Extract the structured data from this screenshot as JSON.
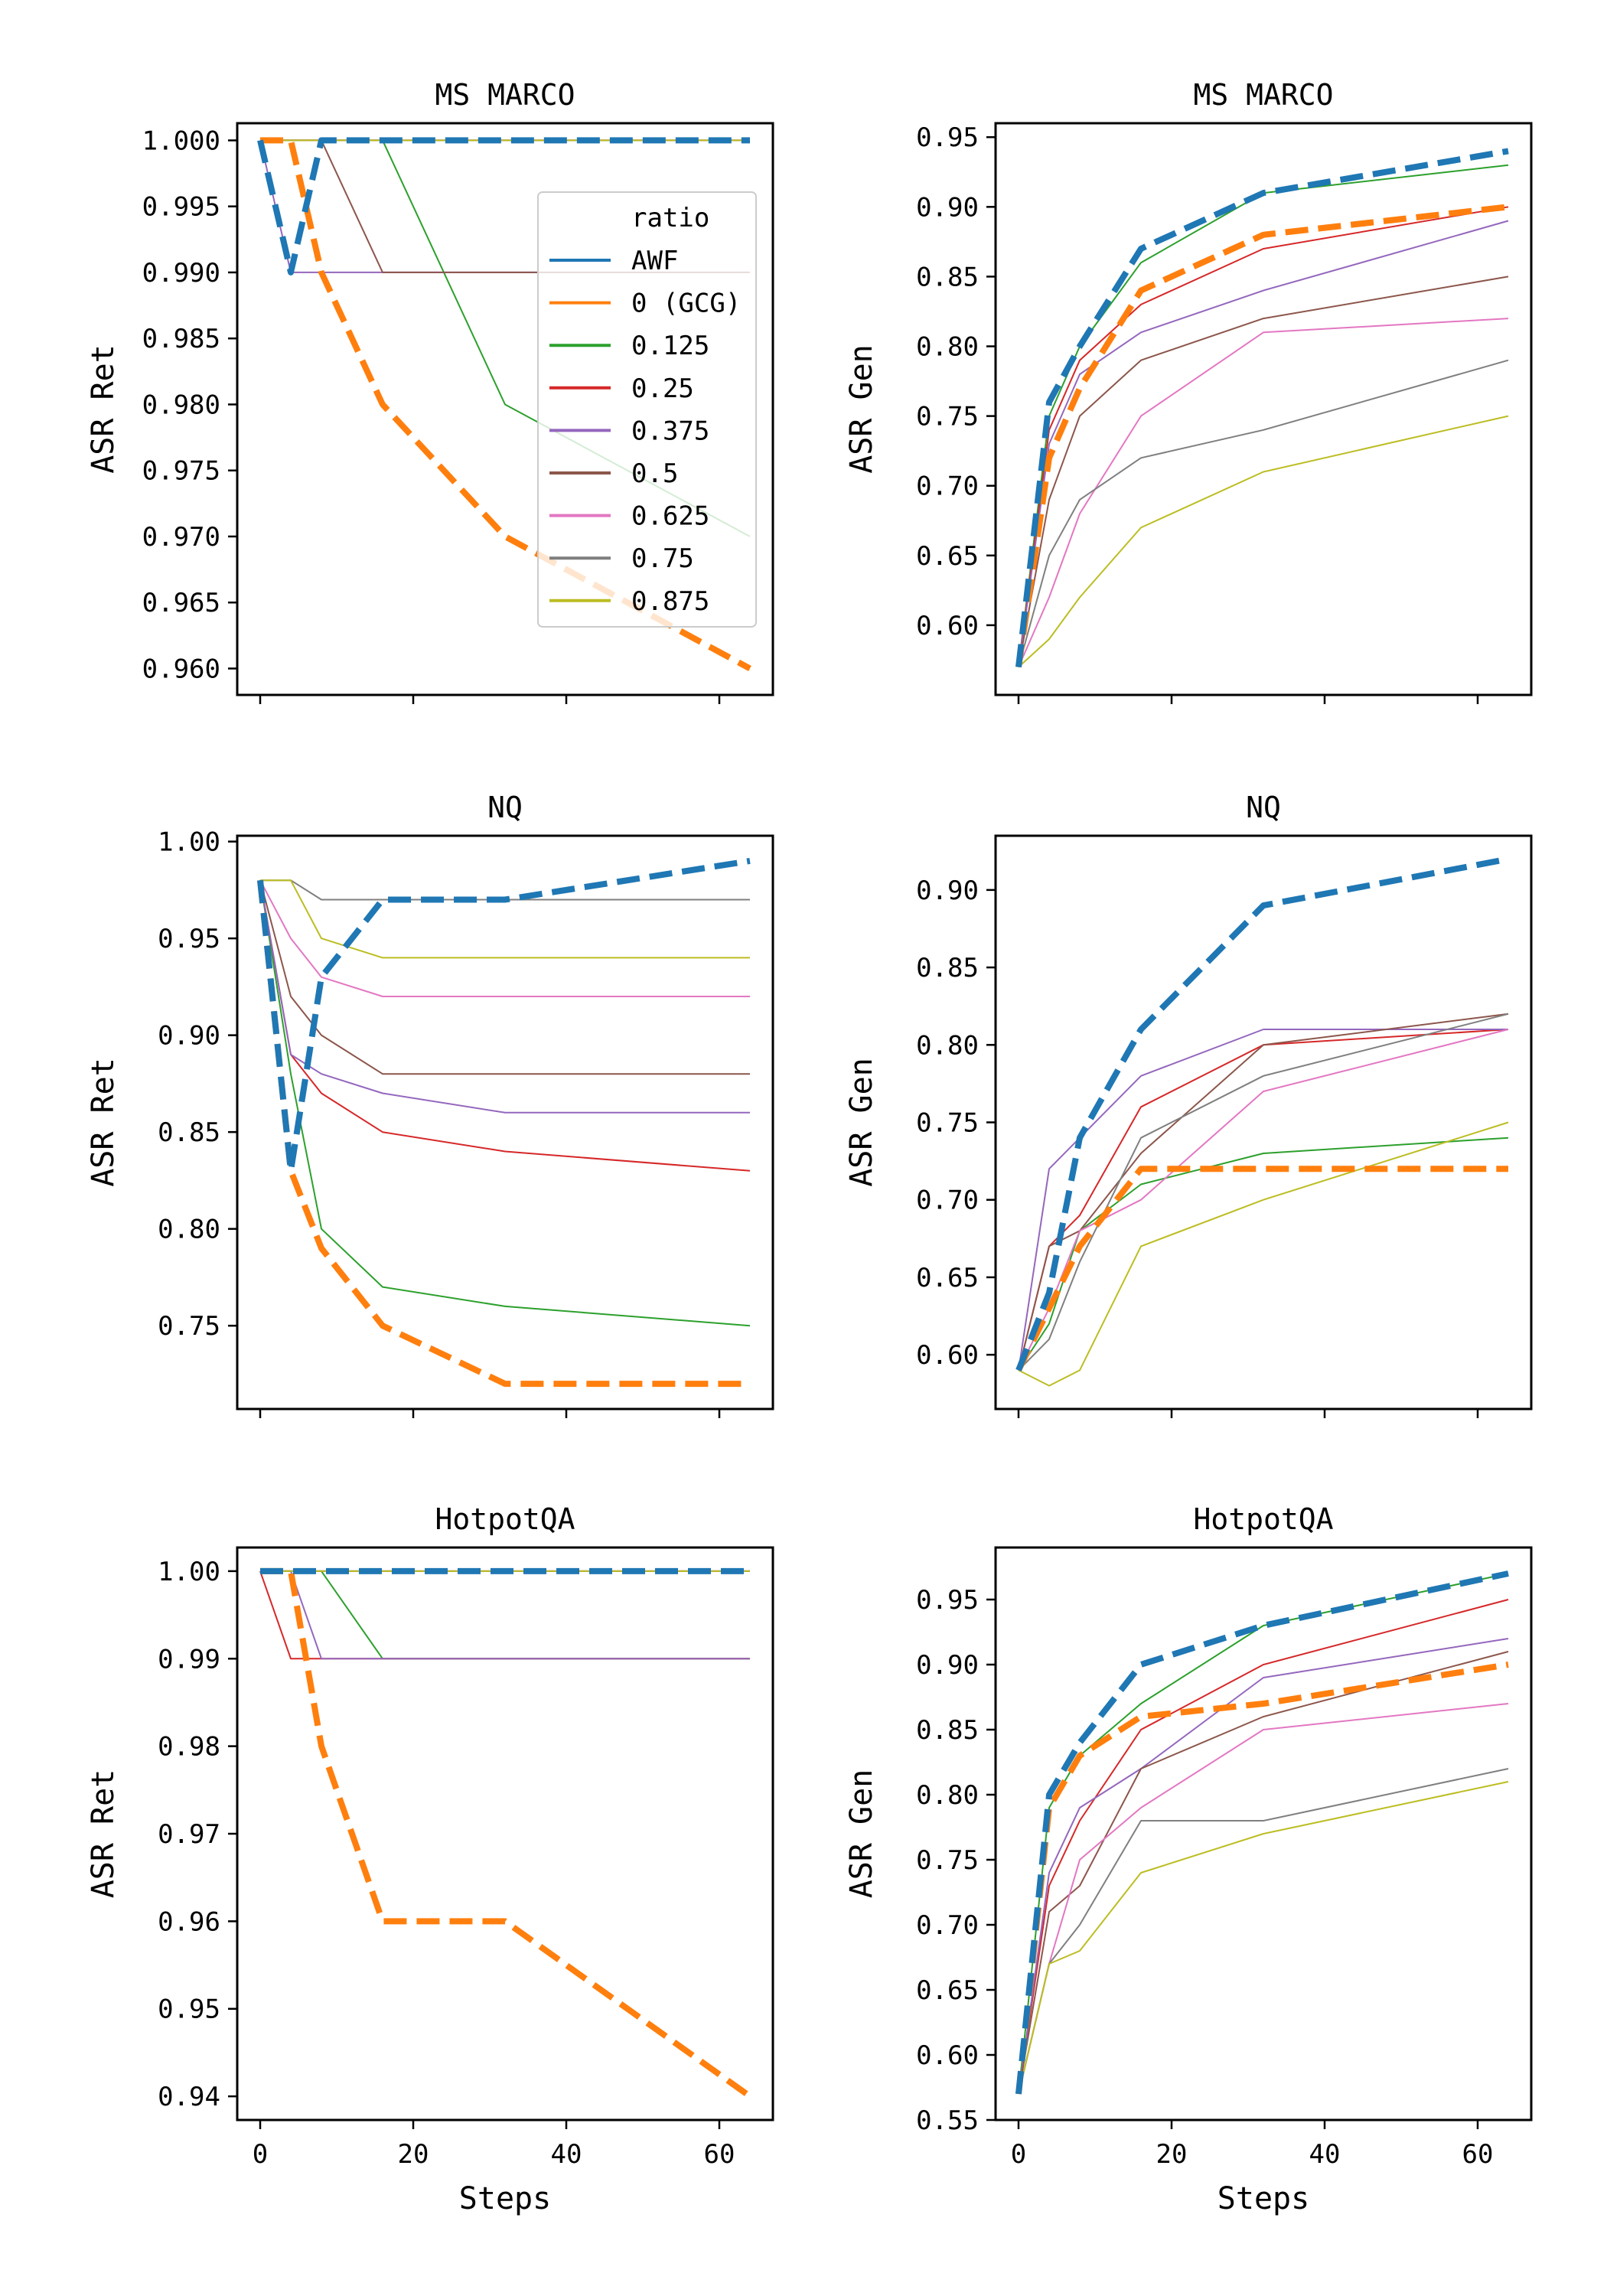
{
  "chart_data": {
    "type": "line",
    "x": [
      0,
      4,
      8,
      16,
      32,
      64
    ],
    "xlabel": "Steps",
    "xlim": [
      -3,
      67
    ],
    "xticks": [
      0,
      20,
      40,
      60
    ],
    "legend": {
      "title": "ratio",
      "placement": "top-right",
      "entries": [
        {
          "name": "AWF",
          "color": "#1f77b4"
        },
        {
          "name": "0 (GCG)",
          "color": "#ff7f0e"
        },
        {
          "name": "0.125",
          "color": "#2ca02c"
        },
        {
          "name": "0.25",
          "color": "#d62728"
        },
        {
          "name": "0.375",
          "color": "#9467bd"
        },
        {
          "name": "0.5",
          "color": "#8c564b"
        },
        {
          "name": "0.625",
          "color": "#e377c2"
        },
        {
          "name": "0.75",
          "color": "#7f7f7f"
        },
        {
          "name": "0.875",
          "color": "#bcbd22"
        }
      ]
    },
    "panels": [
      {
        "id": "msmarco-ret",
        "row": 0,
        "col": 0,
        "title": "MS MARCO",
        "ylabel": "ASR Ret",
        "ylim": [
          0.958,
          1.0013
        ],
        "yticks": [
          0.96,
          0.965,
          0.97,
          0.975,
          0.98,
          0.985,
          0.99,
          0.995,
          1.0
        ],
        "ytick_labels": [
          "0.960",
          "0.965",
          "0.970",
          "0.975",
          "0.980",
          "0.985",
          "0.990",
          "0.995",
          "1.000"
        ],
        "show_x_tick_labels": false,
        "legend": true,
        "series": [
          {
            "name": "AWF",
            "values": [
              1.0,
              0.99,
              1.0,
              1.0,
              1.0,
              1.0
            ]
          },
          {
            "name": "0 (GCG)",
            "values": [
              1.0,
              1.0,
              0.99,
              0.98,
              0.97,
              0.96
            ]
          },
          {
            "name": "0.125",
            "values": [
              1.0,
              1.0,
              1.0,
              1.0,
              0.98,
              0.97
            ]
          },
          {
            "name": "0.25",
            "values": [
              1.0,
              1.0,
              1.0,
              1.0,
              1.0,
              1.0
            ]
          },
          {
            "name": "0.375",
            "values": [
              1.0,
              0.99,
              0.99,
              0.99,
              0.99,
              0.99
            ]
          },
          {
            "name": "0.5",
            "values": [
              1.0,
              1.0,
              1.0,
              0.99,
              0.99,
              0.99
            ]
          },
          {
            "name": "0.625",
            "values": [
              1.0,
              1.0,
              1.0,
              1.0,
              1.0,
              1.0
            ]
          },
          {
            "name": "0.75",
            "values": [
              1.0,
              1.0,
              1.0,
              1.0,
              1.0,
              1.0
            ]
          },
          {
            "name": "0.875",
            "values": [
              1.0,
              1.0,
              1.0,
              1.0,
              1.0,
              1.0
            ]
          }
        ]
      },
      {
        "id": "msmarco-gen",
        "row": 0,
        "col": 1,
        "title": "MS MARCO",
        "ylabel": "ASR Gen",
        "ylim": [
          0.55,
          0.96
        ],
        "yticks": [
          0.6,
          0.65,
          0.7,
          0.75,
          0.8,
          0.85,
          0.9,
          0.95
        ],
        "ytick_labels": [
          "0.60",
          "0.65",
          "0.70",
          "0.75",
          "0.80",
          "0.85",
          "0.90",
          "0.95"
        ],
        "show_x_tick_labels": false,
        "legend": false,
        "series": [
          {
            "name": "AWF",
            "values": [
              0.57,
              0.76,
              0.8,
              0.87,
              0.91,
              0.94
            ]
          },
          {
            "name": "0 (GCG)",
            "values": [
              0.57,
              0.72,
              0.77,
              0.84,
              0.88,
              0.9
            ]
          },
          {
            "name": "0.125",
            "values": [
              0.57,
              0.75,
              0.8,
              0.86,
              0.91,
              0.93
            ]
          },
          {
            "name": "0.25",
            "values": [
              0.57,
              0.74,
              0.79,
              0.83,
              0.87,
              0.9
            ]
          },
          {
            "name": "0.375",
            "values": [
              0.57,
              0.73,
              0.78,
              0.81,
              0.84,
              0.89
            ]
          },
          {
            "name": "0.5",
            "values": [
              0.57,
              0.69,
              0.75,
              0.79,
              0.82,
              0.85
            ]
          },
          {
            "name": "0.625",
            "values": [
              0.57,
              0.62,
              0.68,
              0.75,
              0.81,
              0.82
            ]
          },
          {
            "name": "0.75",
            "values": [
              0.57,
              0.65,
              0.69,
              0.72,
              0.74,
              0.79
            ]
          },
          {
            "name": "0.875",
            "values": [
              0.57,
              0.59,
              0.62,
              0.67,
              0.71,
              0.75
            ]
          }
        ]
      },
      {
        "id": "nq-ret",
        "row": 1,
        "col": 0,
        "title": "NQ",
        "ylabel": "ASR Ret",
        "ylim": [
          0.707,
          1.003
        ],
        "yticks": [
          0.75,
          0.8,
          0.85,
          0.9,
          0.95,
          1.0
        ],
        "ytick_labels": [
          "0.75",
          "0.80",
          "0.85",
          "0.90",
          "0.95",
          "1.00"
        ],
        "show_x_tick_labels": false,
        "legend": false,
        "series": [
          {
            "name": "AWF",
            "values": [
              0.98,
              0.83,
              0.93,
              0.97,
              0.97,
              0.99
            ]
          },
          {
            "name": "0 (GCG)",
            "values": [
              0.98,
              0.83,
              0.79,
              0.75,
              0.72,
              0.72
            ]
          },
          {
            "name": "0.125",
            "values": [
              0.98,
              0.88,
              0.8,
              0.77,
              0.76,
              0.75
            ]
          },
          {
            "name": "0.25",
            "values": [
              0.98,
              0.89,
              0.87,
              0.85,
              0.84,
              0.83
            ]
          },
          {
            "name": "0.375",
            "values": [
              0.98,
              0.89,
              0.88,
              0.87,
              0.86,
              0.86
            ]
          },
          {
            "name": "0.5",
            "values": [
              0.98,
              0.92,
              0.9,
              0.88,
              0.88,
              0.88
            ]
          },
          {
            "name": "0.625",
            "values": [
              0.98,
              0.95,
              0.93,
              0.92,
              0.92,
              0.92
            ]
          },
          {
            "name": "0.75",
            "values": [
              0.98,
              0.98,
              0.97,
              0.97,
              0.97,
              0.97
            ]
          },
          {
            "name": "0.875",
            "values": [
              0.98,
              0.98,
              0.95,
              0.94,
              0.94,
              0.94
            ]
          }
        ]
      },
      {
        "id": "nq-gen",
        "row": 1,
        "col": 1,
        "title": "NQ",
        "ylabel": "ASR Gen",
        "ylim": [
          0.565,
          0.935
        ],
        "yticks": [
          0.6,
          0.65,
          0.7,
          0.75,
          0.8,
          0.85,
          0.9
        ],
        "ytick_labels": [
          "0.60",
          "0.65",
          "0.70",
          "0.75",
          "0.80",
          "0.85",
          "0.90"
        ],
        "show_x_tick_labels": false,
        "legend": false,
        "series": [
          {
            "name": "AWF",
            "values": [
              0.59,
              0.64,
              0.74,
              0.81,
              0.89,
              0.92
            ]
          },
          {
            "name": "0 (GCG)",
            "values": [
              0.59,
              0.63,
              0.67,
              0.72,
              0.72,
              0.72
            ]
          },
          {
            "name": "0.125",
            "values": [
              0.59,
              0.62,
              0.68,
              0.71,
              0.73,
              0.74
            ]
          },
          {
            "name": "0.25",
            "values": [
              0.59,
              0.67,
              0.69,
              0.76,
              0.8,
              0.81
            ]
          },
          {
            "name": "0.375",
            "values": [
              0.59,
              0.72,
              0.74,
              0.78,
              0.81,
              0.81
            ]
          },
          {
            "name": "0.5",
            "values": [
              0.59,
              0.67,
              0.68,
              0.73,
              0.8,
              0.82
            ]
          },
          {
            "name": "0.625",
            "values": [
              0.59,
              0.63,
              0.68,
              0.7,
              0.77,
              0.81
            ]
          },
          {
            "name": "0.75",
            "values": [
              0.59,
              0.61,
              0.66,
              0.74,
              0.78,
              0.82
            ]
          },
          {
            "name": "0.875",
            "values": [
              0.59,
              0.58,
              0.59,
              0.67,
              0.7,
              0.75
            ]
          }
        ]
      },
      {
        "id": "hotpotqa-ret",
        "row": 2,
        "col": 0,
        "title": "HotpotQA",
        "ylabel": "ASR Ret",
        "ylim": [
          0.9373,
          1.0027
        ],
        "yticks": [
          0.94,
          0.95,
          0.96,
          0.97,
          0.98,
          0.99,
          1.0
        ],
        "ytick_labels": [
          "0.94",
          "0.95",
          "0.96",
          "0.97",
          "0.98",
          "0.99",
          "1.00"
        ],
        "show_x_tick_labels": true,
        "legend": false,
        "series": [
          {
            "name": "AWF",
            "values": [
              1.0,
              1.0,
              1.0,
              1.0,
              1.0,
              1.0
            ]
          },
          {
            "name": "0 (GCG)",
            "values": [
              1.0,
              1.0,
              0.98,
              0.96,
              0.96,
              0.94
            ]
          },
          {
            "name": "0.125",
            "values": [
              1.0,
              1.0,
              1.0,
              0.99,
              0.99,
              0.99
            ]
          },
          {
            "name": "0.25",
            "values": [
              1.0,
              0.99,
              0.99,
              0.99,
              0.99,
              0.99
            ]
          },
          {
            "name": "0.375",
            "values": [
              1.0,
              1.0,
              0.99,
              0.99,
              0.99,
              0.99
            ]
          },
          {
            "name": "0.5",
            "values": [
              1.0,
              1.0,
              1.0,
              1.0,
              1.0,
              1.0
            ]
          },
          {
            "name": "0.625",
            "values": [
              1.0,
              1.0,
              1.0,
              1.0,
              1.0,
              1.0
            ]
          },
          {
            "name": "0.75",
            "values": [
              1.0,
              1.0,
              1.0,
              1.0,
              1.0,
              1.0
            ]
          },
          {
            "name": "0.875",
            "values": [
              1.0,
              1.0,
              1.0,
              1.0,
              1.0,
              1.0
            ]
          }
        ]
      },
      {
        "id": "hotpotqa-gen",
        "row": 2,
        "col": 1,
        "title": "HotpotQA",
        "ylabel": "ASR Gen",
        "ylim": [
          0.55,
          0.99
        ],
        "yticks": [
          0.55,
          0.6,
          0.65,
          0.7,
          0.75,
          0.8,
          0.85,
          0.9,
          0.95
        ],
        "ytick_labels": [
          "0.55",
          "0.60",
          "0.65",
          "0.70",
          "0.75",
          "0.80",
          "0.85",
          "0.90",
          "0.95"
        ],
        "show_x_tick_labels": true,
        "legend": false,
        "series": [
          {
            "name": "AWF",
            "values": [
              0.57,
              0.8,
              0.84,
              0.9,
              0.93,
              0.97
            ]
          },
          {
            "name": "0 (GCG)",
            "values": [
              0.57,
              0.79,
              0.83,
              0.86,
              0.87,
              0.9
            ]
          },
          {
            "name": "0.125",
            "values": [
              0.57,
              0.79,
              0.83,
              0.87,
              0.93,
              0.97
            ]
          },
          {
            "name": "0.25",
            "values": [
              0.57,
              0.73,
              0.78,
              0.85,
              0.9,
              0.95
            ]
          },
          {
            "name": "0.375",
            "values": [
              0.57,
              0.74,
              0.79,
              0.82,
              0.89,
              0.92
            ]
          },
          {
            "name": "0.5",
            "values": [
              0.57,
              0.71,
              0.73,
              0.82,
              0.86,
              0.91
            ]
          },
          {
            "name": "0.625",
            "values": [
              0.57,
              0.67,
              0.75,
              0.79,
              0.85,
              0.87
            ]
          },
          {
            "name": "0.75",
            "values": [
              0.57,
              0.67,
              0.7,
              0.78,
              0.78,
              0.82
            ]
          },
          {
            "name": "0.875",
            "values": [
              0.57,
              0.67,
              0.68,
              0.74,
              0.77,
              0.81
            ]
          }
        ]
      }
    ]
  }
}
